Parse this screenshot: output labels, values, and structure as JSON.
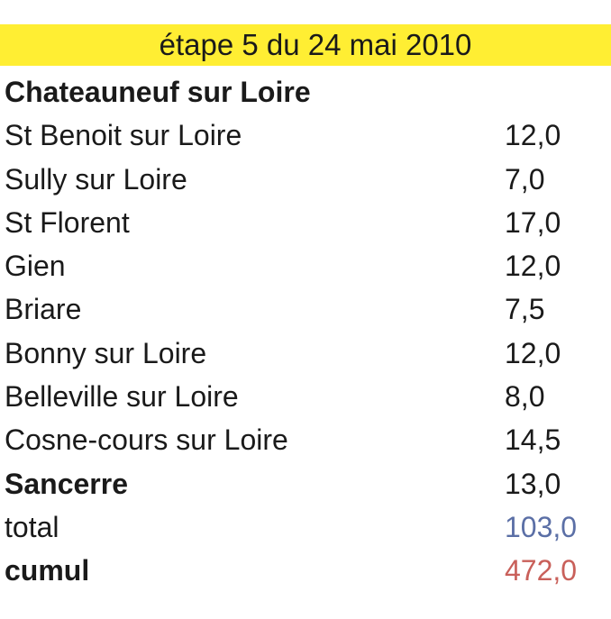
{
  "title": "étape 5 du 24 mai 2010",
  "start": "Chateauneuf sur Loire",
  "stages": [
    {
      "label": "St Benoit sur Loire",
      "value": "12,0"
    },
    {
      "label": "Sully sur Loire",
      "value": "7,0"
    },
    {
      "label": "St Florent",
      "value": "17,0"
    },
    {
      "label": "Gien",
      "value": "12,0"
    },
    {
      "label": "Briare",
      "value": "7,5"
    },
    {
      "label": "Bonny sur Loire",
      "value": "12,0"
    },
    {
      "label": "Belleville sur Loire",
      "value": "8,0"
    },
    {
      "label": "Cosne-cours sur Loire",
      "value": "14,5"
    },
    {
      "label": "Sancerre",
      "value": "13,0"
    }
  ],
  "total": {
    "label": "total",
    "value": "103,0"
  },
  "cumul": {
    "label": "cumul",
    "value": "472,0"
  },
  "colors": {
    "title_band": "#ffee33",
    "total_value": "#5b6fa6",
    "cumul_value": "#c9605a"
  }
}
